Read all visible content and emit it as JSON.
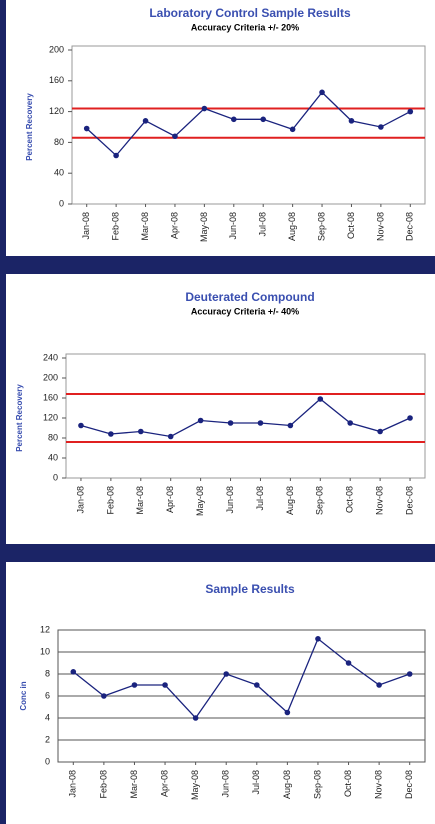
{
  "chart_data": [
    {
      "type": "line",
      "title": "Laboratory Control Sample Results",
      "subtitle": "Accuracy Criteria +/- 20%",
      "y_label": "Percent Recovery",
      "categories": [
        "Jan-08",
        "Feb-08",
        "Mar-08",
        "Apr-08",
        "May-08",
        "Jun-08",
        "Jul-08",
        "Aug-08",
        "Sep-08",
        "Oct-08",
        "Nov-08",
        "Dec-08"
      ],
      "series": [
        {
          "name": "Percent Recovery",
          "color": "#1a237e",
          "values": [
            98,
            63,
            108,
            88,
            124,
            110,
            110,
            97,
            145,
            108,
            100,
            120
          ]
        }
      ],
      "reference_lines": [
        {
          "value": 124,
          "color": "#e02020"
        },
        {
          "value": 86,
          "color": "#e02020"
        }
      ],
      "ylim": [
        0,
        200
      ],
      "yticks": [
        0,
        40,
        80,
        120,
        160,
        200
      ],
      "grid": false
    },
    {
      "type": "line",
      "title": "Deuterated Compound",
      "subtitle": "Accuracy Criteria +/- 40%",
      "y_label": "Percent Recovery",
      "categories": [
        "Jan-08",
        "Feb-08",
        "Mar-08",
        "Apr-08",
        "May-08",
        "Jun-08",
        "Jul-08",
        "Aug-08",
        "Sep-08",
        "Oct-08",
        "Nov-08",
        "Dec-08"
      ],
      "series": [
        {
          "name": "Percent Recovery",
          "color": "#1a237e",
          "values": [
            105,
            88,
            93,
            83,
            115,
            110,
            110,
            105,
            158,
            110,
            93,
            120
          ]
        }
      ],
      "reference_lines": [
        {
          "value": 168,
          "color": "#e02020"
        },
        {
          "value": 72,
          "color": "#e02020"
        }
      ],
      "ylim": [
        0,
        240
      ],
      "yticks": [
        0,
        40,
        80,
        120,
        160,
        200,
        240
      ],
      "grid": false
    },
    {
      "type": "line",
      "title": "Sample Results",
      "y_label": "Conc in",
      "categories": [
        "Jan-08",
        "Feb-08",
        "Mar-08",
        "Apr-08",
        "May-08",
        "Jun-08",
        "Jul-08",
        "Aug-08",
        "Sep-08",
        "Oct-08",
        "Nov-08",
        "Dec-08"
      ],
      "series": [
        {
          "name": "Conc in",
          "color": "#1a237e",
          "values": [
            8.2,
            6,
            7,
            7,
            4,
            8,
            7,
            4.5,
            11.2,
            9,
            7,
            8
          ]
        }
      ],
      "ylim": [
        0,
        12
      ],
      "yticks": [
        0,
        2,
        4,
        6,
        8,
        10,
        12
      ],
      "grid": true
    }
  ]
}
